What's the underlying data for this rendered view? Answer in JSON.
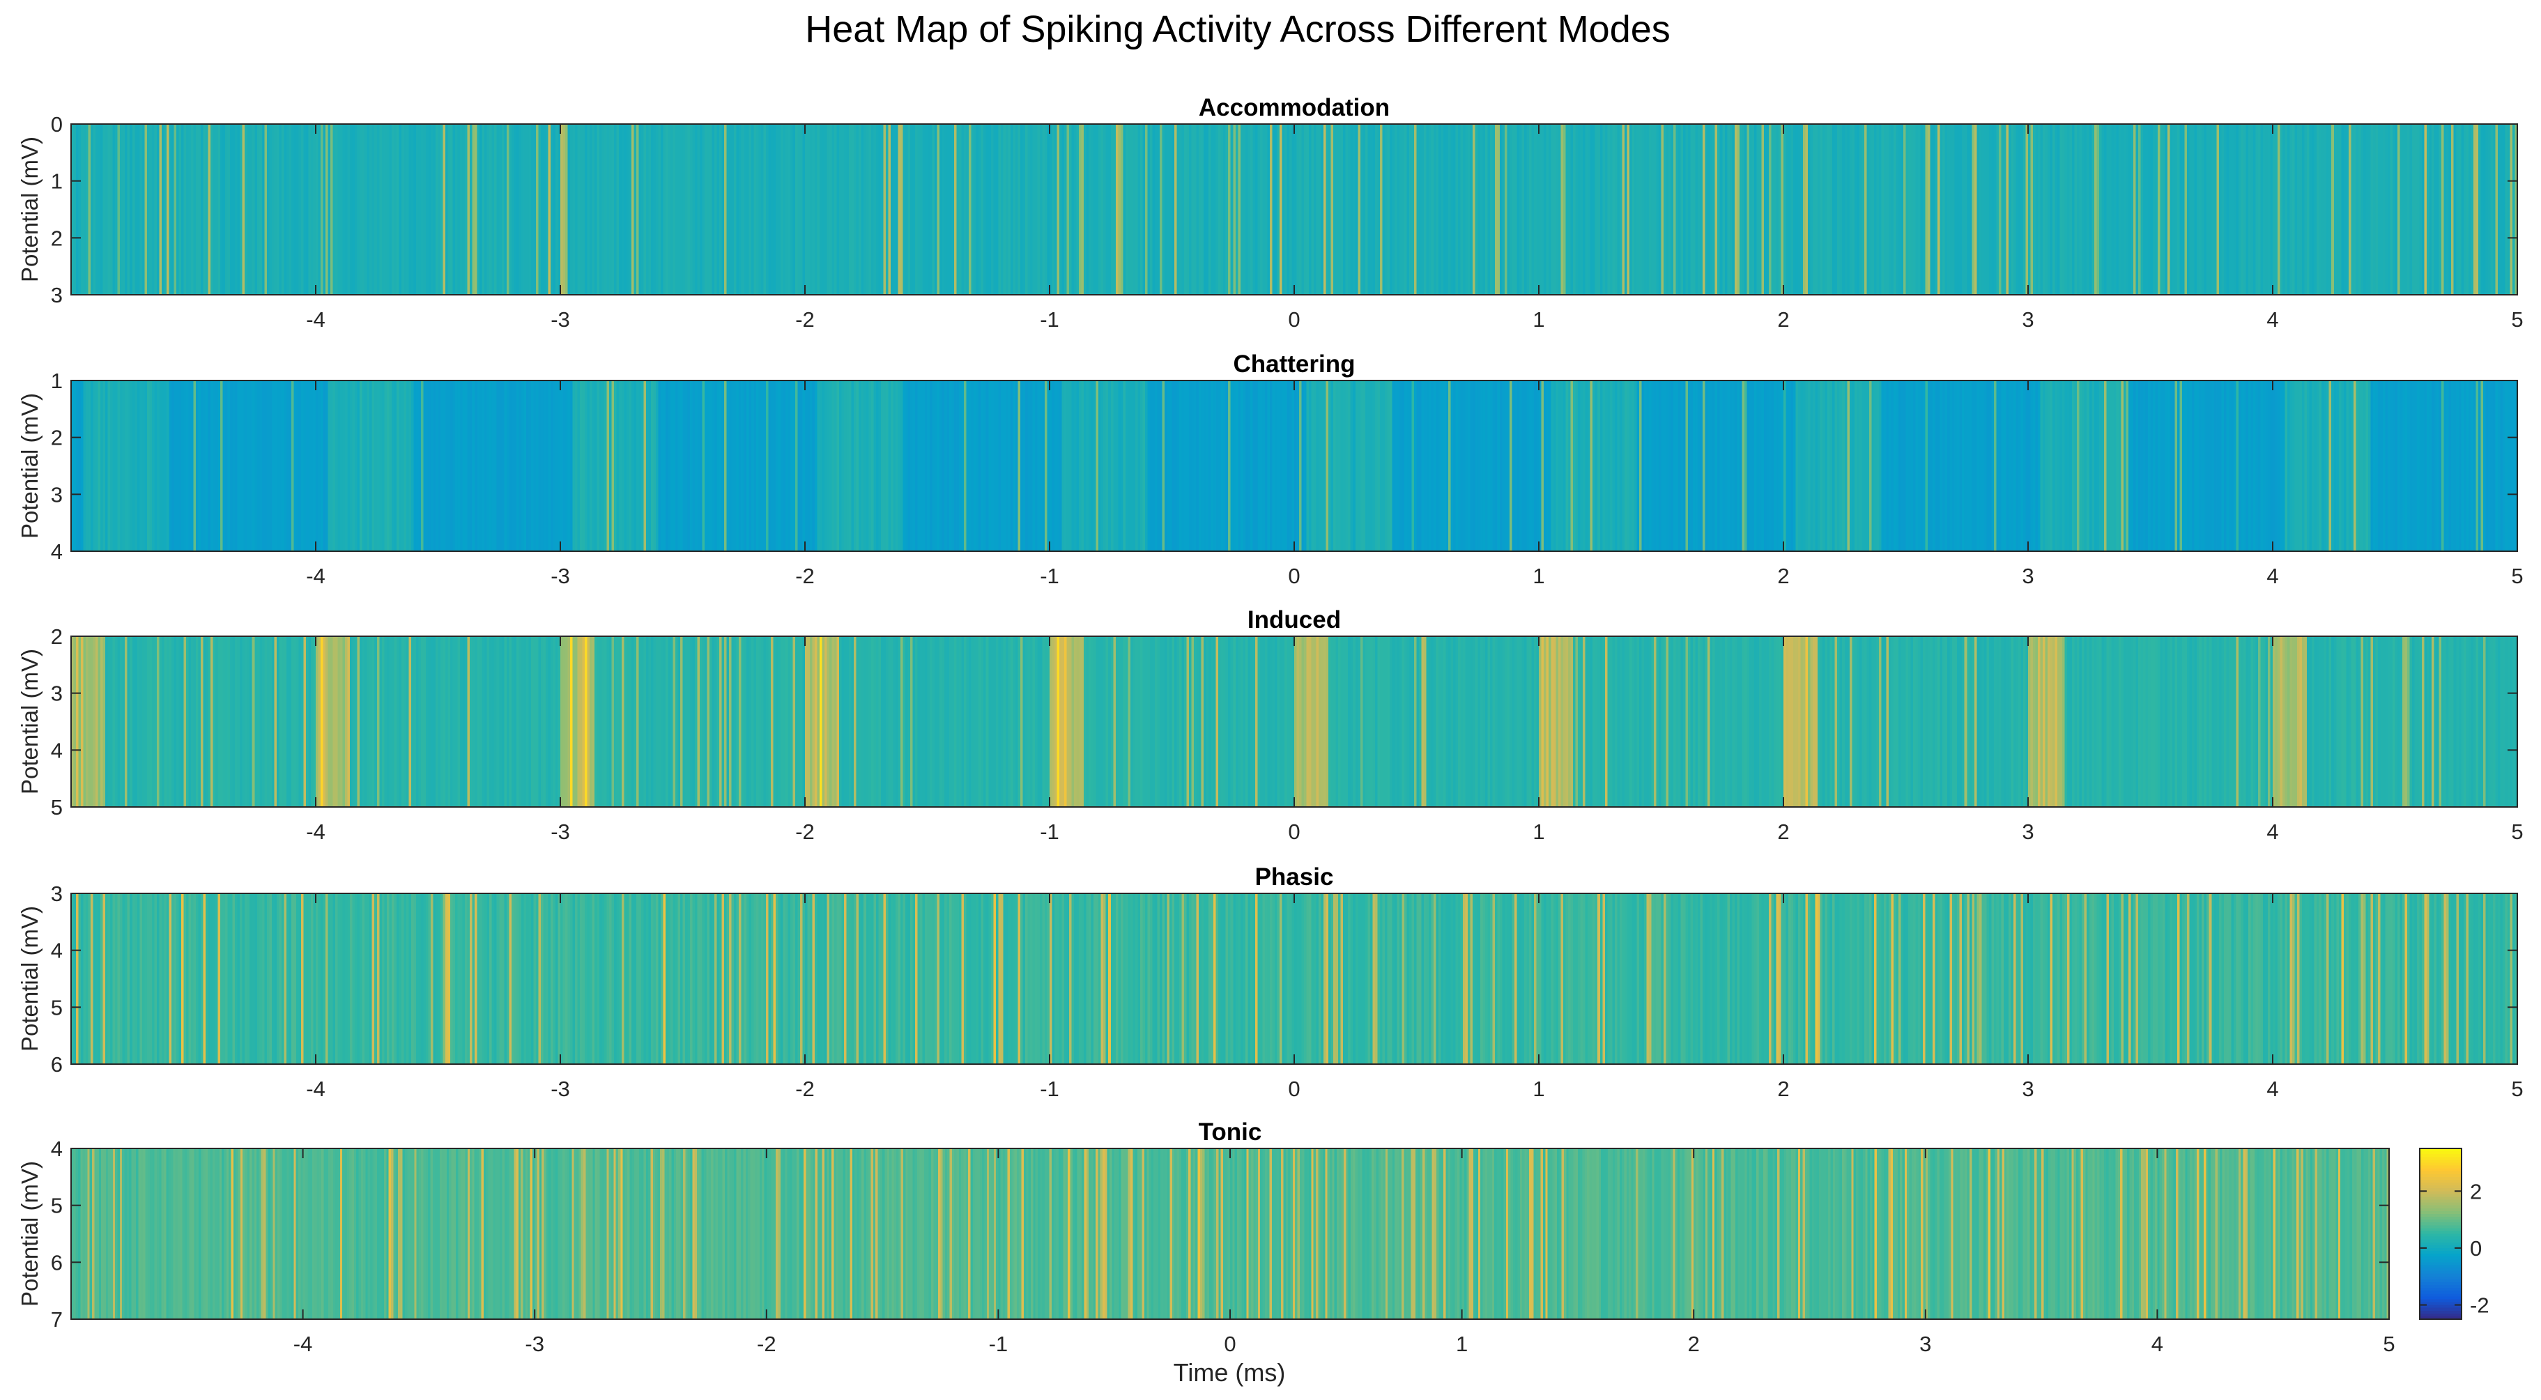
{
  "chart_data": {
    "type": "heatmap",
    "title": "Heat Map of Spiking Activity Across Different Modes",
    "xlabel": "Time (ms)",
    "ylabel": "Potential (mV)",
    "xlim": [
      -5,
      5
    ],
    "x_ticks": [
      -4,
      -3,
      -2,
      -1,
      0,
      1,
      2,
      3,
      4,
      5
    ],
    "columns_per_panel": 1000,
    "colormap": {
      "name": "parula",
      "stops": [
        "#352a87",
        "#0f5cdd",
        "#1481d6",
        "#06a4ca",
        "#2eb7a4",
        "#87bf77",
        "#d1bb59",
        "#fec832",
        "#f9fb0e"
      ]
    },
    "colorbar": {
      "range": [
        -2.5,
        3.5
      ],
      "ticks": [
        -2,
        0,
        2
      ]
    },
    "panels": [
      {
        "title": "Accommodation",
        "ylim": [
          0,
          3
        ],
        "y_ticks": [
          0,
          1,
          2,
          3
        ],
        "pattern": {
          "base": 0.15,
          "spike_prob": 0.1,
          "spike_amp": 1.4,
          "noise": 0.3,
          "periodic": false
        }
      },
      {
        "title": "Chattering",
        "ylim": [
          1,
          4
        ],
        "y_ticks": [
          1,
          2,
          3,
          4
        ],
        "pattern": {
          "base": -0.35,
          "spike_prob": 0.05,
          "spike_amp": 1.3,
          "noise": 0.2,
          "periodic": true,
          "period_ms": 1,
          "burst_width_ms": 0.35,
          "burst_offset_ms": 0.05,
          "burst_level": 0.6
        }
      },
      {
        "title": "Induced",
        "ylim": [
          2,
          5
        ],
        "y_ticks": [
          2,
          3,
          4,
          5
        ],
        "pattern": {
          "base": 0.35,
          "spike_prob": 0.06,
          "spike_amp": 1.2,
          "noise": 0.3,
          "periodic": true,
          "period_ms": 1,
          "burst_width_ms": 0.14,
          "burst_offset_ms": 0.0,
          "burst_level": 1.6
        }
      },
      {
        "title": "Phasic",
        "ylim": [
          3,
          6
        ],
        "y_ticks": [
          3,
          4,
          5,
          6
        ],
        "pattern": {
          "base": 0.55,
          "spike_prob": 0.12,
          "spike_amp": 1.5,
          "noise": 0.45,
          "periodic": false
        }
      },
      {
        "title": "Tonic",
        "ylim": [
          4,
          7
        ],
        "y_ticks": [
          4,
          5,
          6,
          7
        ],
        "pattern": {
          "base": 0.75,
          "spike_prob": 0.15,
          "spike_amp": 1.3,
          "noise": 0.4,
          "periodic": false
        }
      }
    ]
  }
}
